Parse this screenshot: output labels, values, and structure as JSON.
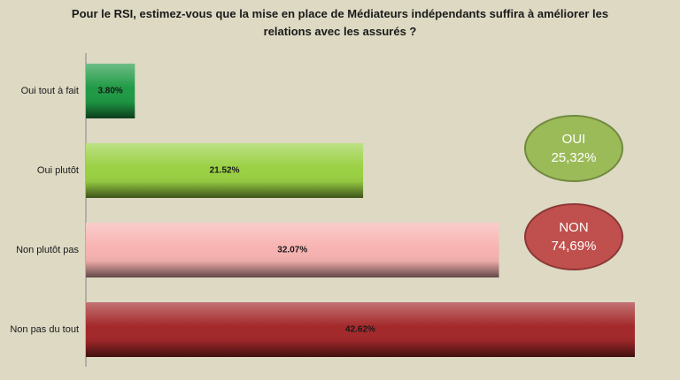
{
  "chart_data": {
    "type": "bar",
    "orientation": "horizontal",
    "title": "Pour le RSI, estimez-vous que la mise en place de Médiateurs indépendants suffira à améliorer les relations avec les assurés ?",
    "categories": [
      "Oui tout à fait",
      "Oui plutôt",
      "Non plutôt pas",
      "Non pas du tout"
    ],
    "values": [
      3.8,
      21.52,
      32.07,
      42.62
    ],
    "value_labels": [
      "3.80%",
      "21.52%",
      "32.07%",
      "42.62%"
    ],
    "colors": [
      "#1f9a45",
      "#9ad143",
      "#f7b3b1",
      "#a3282a"
    ],
    "annotations": [
      {
        "lines": [
          "OUI",
          "25,32%"
        ],
        "color": "#9bbb59",
        "border": "#71893f"
      },
      {
        "lines": [
          "NON",
          "74,69%"
        ],
        "color": "#c0504d",
        "border": "#8c3836"
      }
    ]
  }
}
